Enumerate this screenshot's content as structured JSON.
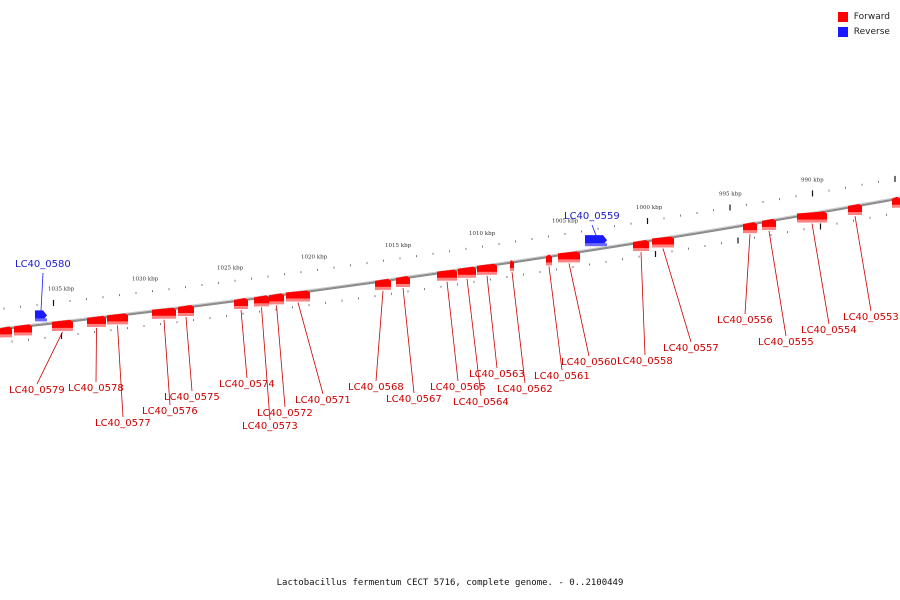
{
  "legend": {
    "forward": {
      "label": "Forward",
      "color": "#ff0000"
    },
    "reverse": {
      "label": "Reverse",
      "color": "#1a1aff"
    }
  },
  "caption": "Lactobacillus fermentum CECT 5716, complete genome. - 0..2100449",
  "scale_labels": [
    "990 kbp",
    "995 kbp",
    "1000 kbp",
    "1005 kbp",
    "1010 kbp",
    "1015 kbp",
    "1020 kbp",
    "1025 kbp",
    "1030 kbp",
    "1035 kbp"
  ],
  "genes": [
    {
      "id": "LC40_0553",
      "strand": "forward"
    },
    {
      "id": "LC40_0554",
      "strand": "forward"
    },
    {
      "id": "LC40_0555",
      "strand": "forward"
    },
    {
      "id": "LC40_0556",
      "strand": "forward"
    },
    {
      "id": "LC40_0557",
      "strand": "forward"
    },
    {
      "id": "LC40_0558",
      "strand": "forward"
    },
    {
      "id": "LC40_0559",
      "strand": "reverse"
    },
    {
      "id": "LC40_0560",
      "strand": "forward"
    },
    {
      "id": "LC40_0561",
      "strand": "forward"
    },
    {
      "id": "LC40_0562",
      "strand": "forward"
    },
    {
      "id": "LC40_0563",
      "strand": "forward"
    },
    {
      "id": "LC40_0564",
      "strand": "forward"
    },
    {
      "id": "LC40_0565",
      "strand": "forward"
    },
    {
      "id": "LC40_0567",
      "strand": "forward"
    },
    {
      "id": "LC40_0568",
      "strand": "forward"
    },
    {
      "id": "LC40_0571",
      "strand": "forward"
    },
    {
      "id": "LC40_0572",
      "strand": "forward"
    },
    {
      "id": "LC40_0573",
      "strand": "forward"
    },
    {
      "id": "LC40_0574",
      "strand": "forward"
    },
    {
      "id": "LC40_0575",
      "strand": "forward"
    },
    {
      "id": "LC40_0576",
      "strand": "forward"
    },
    {
      "id": "LC40_0577",
      "strand": "forward"
    },
    {
      "id": "LC40_0578",
      "strand": "forward"
    },
    {
      "id": "LC40_0579",
      "strand": "forward"
    },
    {
      "id": "LC40_0580",
      "strand": "reverse"
    }
  ]
}
